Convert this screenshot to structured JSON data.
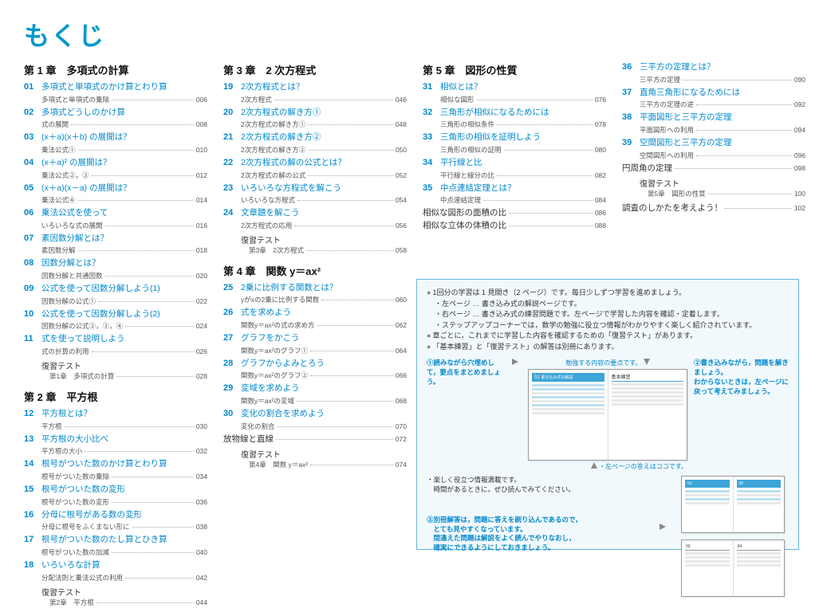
{
  "title": "もくじ",
  "colors": {
    "accent": "#0099cc",
    "link": "#0088cc",
    "text": "#333333",
    "box_border": "#66b3d9",
    "box_bg": "#f2f9fc"
  },
  "col1": {
    "chapters": [
      {
        "heading": "第 1 章　多項式の計算",
        "items": [
          {
            "n": "01",
            "t": "多項式と単項式のかけ算とわり算",
            "s": "多項式と単項式の乗除",
            "p": "006"
          },
          {
            "n": "02",
            "t": "多項式どうしのかけ算",
            "s": "式の展開",
            "p": "008"
          },
          {
            "n": "03",
            "t": "(x＋a)(x＋b) の展開は？",
            "s": "乗法公式①",
            "p": "010"
          },
          {
            "n": "04",
            "t": "(x＋a)² の展開は？",
            "s": "乗法公式②，③",
            "p": "012"
          },
          {
            "n": "05",
            "t": "(x＋a)(x－a) の展開は？",
            "s": "乗法公式④",
            "p": "014"
          },
          {
            "n": "06",
            "t": "乗法公式を使って",
            "s": "いろいろな式の展開",
            "p": "016"
          },
          {
            "n": "07",
            "t": "素因数分解とは？",
            "s": "素因数分解",
            "p": "018"
          },
          {
            "n": "08",
            "t": "因数分解とは？",
            "s": "因数分解と共通因数",
            "p": "020"
          },
          {
            "n": "09",
            "t": "公式を使って因数分解しよう(1)",
            "s": "因数分解の公式①",
            "p": "022"
          },
          {
            "n": "10",
            "t": "公式を使って因数分解しよう(2)",
            "s": "因数分解の公式②，③，④",
            "p": "024"
          },
          {
            "n": "11",
            "t": "式を使って説明しよう",
            "s": "式の計算の利用",
            "p": "026"
          }
        ],
        "review": {
          "label": "復習テスト",
          "sub": "第1章　多項式の計算",
          "p": "028"
        }
      },
      {
        "heading": "第 2 章　平方根",
        "items": [
          {
            "n": "12",
            "t": "平方根とは？",
            "s": "平方根",
            "p": "030"
          },
          {
            "n": "13",
            "t": "平方根の大小比べ",
            "s": "平方根の大小",
            "p": "032"
          },
          {
            "n": "14",
            "t": "根号がついた数のかけ算とわり算",
            "s": "根号がついた数の乗除",
            "p": "034"
          },
          {
            "n": "15",
            "t": "根号がついた数の変形",
            "s": "根号がついた数の変形",
            "p": "036"
          },
          {
            "n": "16",
            "t": "分母に根号がある数の変形",
            "s": "分母に根号をふくまない形に",
            "p": "038"
          },
          {
            "n": "17",
            "t": "根号がついた数のたし算とひき算",
            "s": "根号がついた数の加減",
            "p": "040"
          },
          {
            "n": "18",
            "t": "いろいろな計算",
            "s": "分配法則と乗法公式の利用",
            "p": "042"
          }
        ],
        "review": {
          "label": "復習テスト",
          "sub": "第2章　平方根",
          "p": "044"
        }
      }
    ]
  },
  "col2": {
    "chapters": [
      {
        "heading": "第 3 章　2 次方程式",
        "items": [
          {
            "n": "19",
            "t": "2次方程式とは？",
            "s": "2次方程式",
            "p": "046"
          },
          {
            "n": "20",
            "t": "2次方程式の解き方①",
            "s": "2次方程式の解き方①",
            "p": "048"
          },
          {
            "n": "21",
            "t": "2次方程式の解き方②",
            "s": "2次方程式の解き方②",
            "p": "050"
          },
          {
            "n": "22",
            "t": "2次方程式の解の公式とは？",
            "s": "2次方程式の解の公式",
            "p": "052"
          },
          {
            "n": "23",
            "t": "いろいろな方程式を解こう",
            "s": "いろいろな方程式",
            "p": "054"
          },
          {
            "n": "24",
            "t": "文章題を解こう",
            "s": "2次方程式の応用",
            "p": "056"
          }
        ],
        "review": {
          "label": "復習テスト",
          "sub": "第3章　2次方程式",
          "p": "058"
        }
      },
      {
        "heading": "第 4 章　関数 y＝ax²",
        "items": [
          {
            "n": "25",
            "t": "2乗に比例する関数とは？",
            "s": "yがxの2乗に比例する関数",
            "p": "060"
          },
          {
            "n": "26",
            "t": "式を求めよう",
            "s": "関数y＝ax²の式の求め方",
            "p": "062"
          },
          {
            "n": "27",
            "t": "グラフをかこう",
            "s": "関数y＝ax²のグラフ①",
            "p": "064"
          },
          {
            "n": "28",
            "t": "グラフからよみとろう",
            "s": "関数y＝ax²のグラフ②",
            "p": "066"
          },
          {
            "n": "29",
            "t": "変域を求めよう",
            "s": "関数y＝ax²の変域",
            "p": "068"
          },
          {
            "n": "30",
            "t": "変化の割合を求めよう",
            "s": "変化の割合",
            "p": "070"
          }
        ],
        "extra": [
          {
            "t": "放物線と直線",
            "p": "072"
          }
        ],
        "review": {
          "label": "復習テスト",
          "sub": "第4章　関数 y＝ax²",
          "p": "074"
        }
      }
    ]
  },
  "col3": {
    "chapters": [
      {
        "heading": "第 5 章　図形の性質",
        "items": [
          {
            "n": "31",
            "t": "相似とは？",
            "s": "相似な図形",
            "p": "076"
          },
          {
            "n": "32",
            "t": "三角形が相似になるためには",
            "s": "三角形の相似条件",
            "p": "078"
          },
          {
            "n": "33",
            "t": "三角形の相似を証明しよう",
            "s": "三角形の相似の証明",
            "p": "080"
          },
          {
            "n": "34",
            "t": "平行線と比",
            "s": "平行線と線分の比",
            "p": "082"
          },
          {
            "n": "35",
            "t": "中点連結定理とは？",
            "s": "中点連結定理",
            "p": "084"
          }
        ],
        "extra": [
          {
            "t": "相似な図形の面積の比",
            "p": "086"
          },
          {
            "t": "相似な立体の体積の比",
            "p": "088"
          }
        ]
      }
    ]
  },
  "col4": {
    "chapters": [
      {
        "heading": "",
        "items": [
          {
            "n": "36",
            "t": "三平方の定理とは？",
            "s": "三平方の定理",
            "p": "090"
          },
          {
            "n": "37",
            "t": "直角三角形になるためには",
            "s": "三平方の定理の逆",
            "p": "092"
          },
          {
            "n": "38",
            "t": "平面図形と三平方の定理",
            "s": "平面図形への利用",
            "p": "094"
          },
          {
            "n": "39",
            "t": "空間図形と三平方の定理",
            "s": "空間図形への利用",
            "p": "096"
          }
        ],
        "extra": [
          {
            "t": "円周角の定理",
            "p": "098"
          }
        ],
        "review": {
          "label": "復習テスト",
          "sub": "第5章　図形の性質",
          "p": "100"
        },
        "extra2": [
          {
            "t": "調査のしかたを考えよう！",
            "p": "102"
          }
        ]
      }
    ]
  },
  "info": {
    "bullets": [
      "1回分の学習は 1 見開き（2 ページ）です。毎日少しずつ学習を進めましょう。",
      "・左ページ … 書き込み式の解説ページです。",
      "・右ページ … 書き込み式の練習問題です。左ページで学習した内容を確認・定着します。",
      "・ステップアップコーナーでは，数学の勉強に役立つ情報がわかりやすく楽しく紹介されています。",
      "章ごとに，これまでに学習した内容を確認するための「復習テスト」があります。",
      "「基本練習」と「復習テスト」の解答は別冊にあります。"
    ],
    "step1": "①読みながら穴埋めして，要点をまとめましょう。",
    "caption_mid": "勉強する内容の要点です。",
    "step2": "②書き込みながら，問題を解きましょう。\nわからないときは，左ページに戻って考えてみましょう。",
    "caption_left": "・左ページの答えはココです。",
    "caption_center": "・楽しく役立つ情報満載です。\n　時間があるときに，ぜひ読んでみてください。",
    "step3": "③別冊解答は，問題に答えを刷り込んであるので，\n　とても見やすくなっています。\n　間違えた問題は解説をよく読んでやりなおし，\n　確実にできるようにしておきましょう。",
    "mock_header1": "01",
    "mock_header2": "02",
    "mock_header3": "03",
    "mock_header4": "04"
  }
}
